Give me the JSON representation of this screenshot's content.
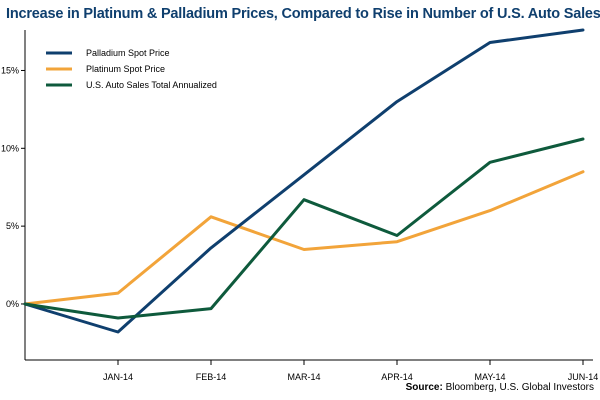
{
  "chart_data": {
    "type": "line",
    "title": "Increase in Platinum & Palladium Prices, Compared to Rise in Number of U.S. Auto Sales",
    "source_label": "Source:",
    "source_text": "Bloomberg, U.S. Global Investors",
    "xlabel": "",
    "ylabel": "",
    "x": [
      "",
      "JAN-14",
      "FEB-14",
      "MAR-14",
      "APR-14",
      "MAY-14",
      "JUN-14"
    ],
    "yticks": [
      "0%",
      "5%",
      "10%",
      "15%"
    ],
    "ytick_values": [
      0,
      5,
      10,
      15
    ],
    "ylim": [
      -3.6,
      17.6
    ],
    "grid": false,
    "legend_position": "top-left",
    "series": [
      {
        "name": "Palladium Spot Price",
        "color": "#0f3f6e",
        "values": [
          0,
          -1.8,
          3.6,
          8.3,
          13.0,
          16.8,
          17.6
        ]
      },
      {
        "name": "Platinum Spot Price",
        "color": "#f2a43a",
        "values": [
          0,
          0.7,
          5.6,
          3.5,
          4.0,
          6.0,
          8.5
        ]
      },
      {
        "name": "U.S. Auto Sales Total Annualized",
        "color": "#0e5a3c",
        "values": [
          0,
          -0.9,
          -0.3,
          6.7,
          4.4,
          9.1,
          10.6
        ]
      }
    ]
  }
}
